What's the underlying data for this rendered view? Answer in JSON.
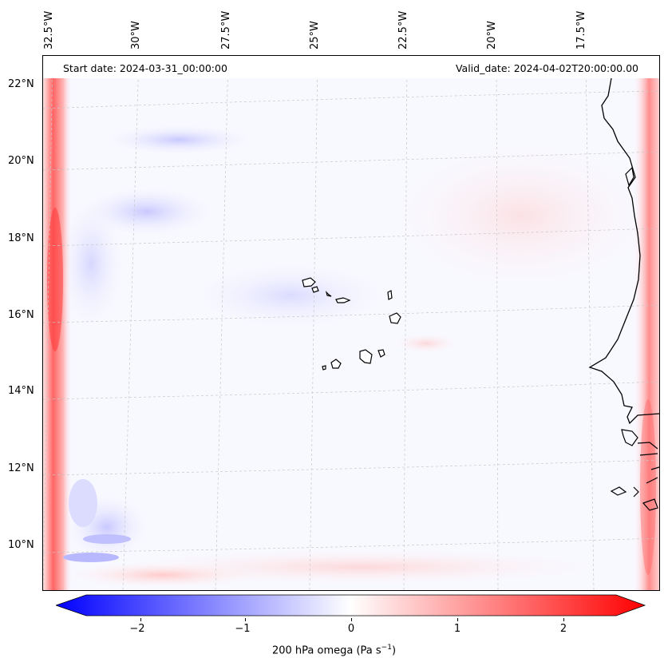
{
  "header": {
    "start_date": "Start date: 2024-03-31_00:00:00",
    "valid_date": "Valid_date: 2024-04-02T20:00:00.00"
  },
  "axes": {
    "lon_labels": [
      "32.5°W",
      "30°W",
      "27.5°W",
      "25°W",
      "22.5°W",
      "20°W",
      "17.5°W"
    ],
    "lat_labels": [
      "22°N",
      "20°N",
      "18°N",
      "16°N",
      "14°N",
      "12°N",
      "10°N"
    ]
  },
  "colorbar": {
    "label_prefix": "200 hPa omega (Pa s",
    "label_exp": "−1",
    "label_suffix": ")",
    "ticks": [
      "−2",
      "−1",
      "0",
      "1",
      "2"
    ],
    "range": [
      -2.6,
      2.6
    ],
    "colormap": "bwr",
    "low_color": "#0000ff",
    "mid_color": "#ffffff",
    "high_color": "#ff0000"
  },
  "map": {
    "region": "Cape Verde and West African coast",
    "field": "200 hPa omega"
  }
}
